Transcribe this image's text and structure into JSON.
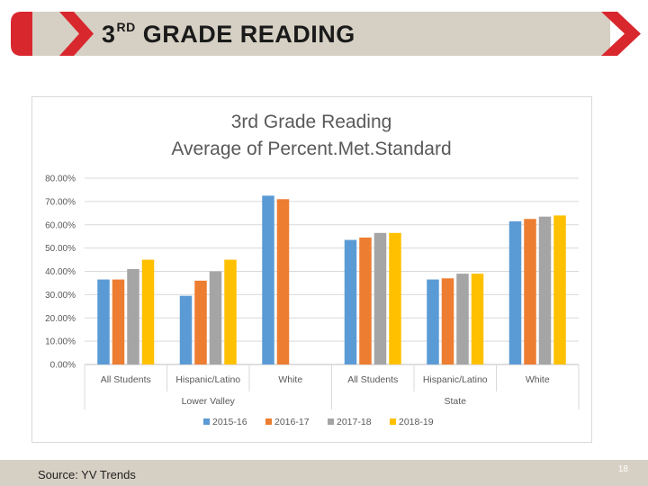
{
  "header": {
    "title_number": "3",
    "title_superscript": "RD",
    "title_rest": "GRADE READING",
    "bar_color": "#d6d0c4",
    "accent_color": "#d9272e"
  },
  "footer": {
    "source": "Source: YV Trends",
    "slide_number": "18"
  },
  "chart_data": {
    "type": "bar",
    "title": "3rd Grade Reading",
    "subtitle": "Average of Percent.Met.Standard",
    "xlabel": "",
    "ylabel": "",
    "ylim": [
      0,
      80
    ],
    "yticks": [
      "0.00%",
      "10.00%",
      "20.00%",
      "30.00%",
      "40.00%",
      "50.00%",
      "60.00%",
      "70.00%",
      "80.00%"
    ],
    "grid": true,
    "legend_position": "bottom",
    "groups": [
      {
        "name": "Lower Valley",
        "categories": [
          "All Students",
          "Hispanic/Latino",
          "White"
        ]
      },
      {
        "name": "State",
        "categories": [
          "All Students",
          "Hispanic/Latino",
          "White"
        ]
      }
    ],
    "series": [
      {
        "name": "2015-16",
        "color": "#5b9bd5",
        "values": [
          36.5,
          29.5,
          72.5,
          53.5,
          36.5,
          61.5
        ]
      },
      {
        "name": "2016-17",
        "color": "#ed7d31",
        "values": [
          36.5,
          36,
          71,
          54.5,
          37,
          62.5
        ]
      },
      {
        "name": "2017-18",
        "color": "#a5a5a5",
        "values": [
          41,
          40,
          null,
          56.5,
          39,
          63.5
        ]
      },
      {
        "name": "2018-19",
        "color": "#ffc000",
        "values": [
          45,
          45,
          null,
          56.5,
          39,
          64
        ]
      }
    ]
  }
}
